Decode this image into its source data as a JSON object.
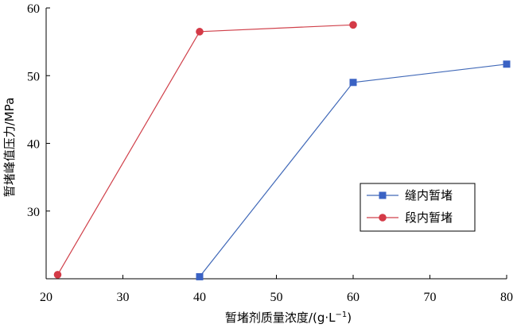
{
  "chart_data": {
    "type": "line",
    "title": "",
    "xlabel": "暂堵剂质量浓度/(g·L",
    "xlabel_sup": "−1",
    "xlabel_tail": ")",
    "ylabel": "暂堵峰值压力/MPa",
    "xlim": [
      20,
      80
    ],
    "ylim": [
      20,
      60
    ],
    "xticks": [
      20,
      30,
      40,
      50,
      60,
      70,
      80
    ],
    "yticks": [
      30,
      40,
      50,
      60
    ],
    "grid": false,
    "legend_position": "right",
    "series": [
      {
        "name": "缝内暂堵",
        "marker": "square",
        "color": "#4169b8",
        "marker_color": "#3a62c4",
        "points": [
          [
            40,
            20.3
          ],
          [
            60,
            49
          ],
          [
            80,
            51.7
          ]
        ]
      },
      {
        "name": "段内暂堵",
        "marker": "circle",
        "color": "#d0404a",
        "marker_color": "#d43a47",
        "points": [
          [
            21.5,
            20.6
          ],
          [
            40,
            56.5
          ],
          [
            60,
            57.5
          ]
        ]
      }
    ]
  }
}
